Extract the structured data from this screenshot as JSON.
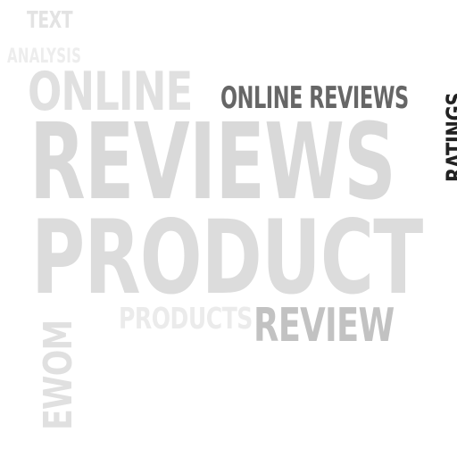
{
  "words": {
    "text": {
      "label": "TEXT",
      "color": "#e3e3e3"
    },
    "analysis": {
      "label": "ANALYSIS",
      "color": "#ededed"
    },
    "online": {
      "label": "ONLINE",
      "color": "#e0e0e0"
    },
    "online_reviews": {
      "label": "ONLINE REVIEWS",
      "color": "#666666"
    },
    "ratings": {
      "label": "RATINGS",
      "color": "#222222"
    },
    "reviews": {
      "label": "REVIEWS",
      "color": "#d9d9d9"
    },
    "product": {
      "label": "PRODUCT",
      "color": "#dcdcdc"
    },
    "products": {
      "label": "PRODUCTS",
      "color": "#ebebeb"
    },
    "review": {
      "label": "REVIEW",
      "color": "#c2c2c2"
    },
    "ewom": {
      "label": "EWOM",
      "color": "#e0e0e0"
    }
  }
}
